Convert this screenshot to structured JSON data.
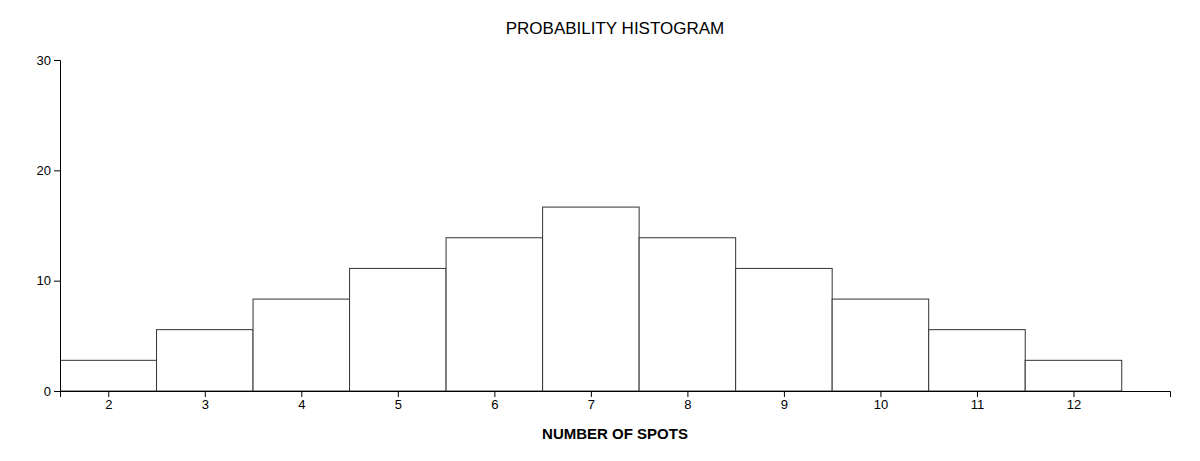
{
  "chart_data": {
    "type": "bar",
    "title": "PROBABILITY HISTOGRAM",
    "xlabel": "NUMBER OF SPOTS",
    "x": [
      2,
      3,
      4,
      5,
      6,
      7,
      8,
      9,
      10,
      11,
      12
    ],
    "values": [
      2.78,
      5.56,
      8.33,
      11.11,
      13.89,
      16.67,
      13.89,
      11.11,
      8.33,
      5.56,
      2.78
    ],
    "color": "#ffffff",
    "xlim": [
      1.5,
      13.0
    ],
    "xticks": [
      2,
      3,
      4,
      5,
      6,
      7,
      8,
      9,
      10,
      11,
      12
    ],
    "ylim": [
      0,
      30
    ],
    "yticks": [
      0,
      10,
      20,
      30
    ]
  }
}
